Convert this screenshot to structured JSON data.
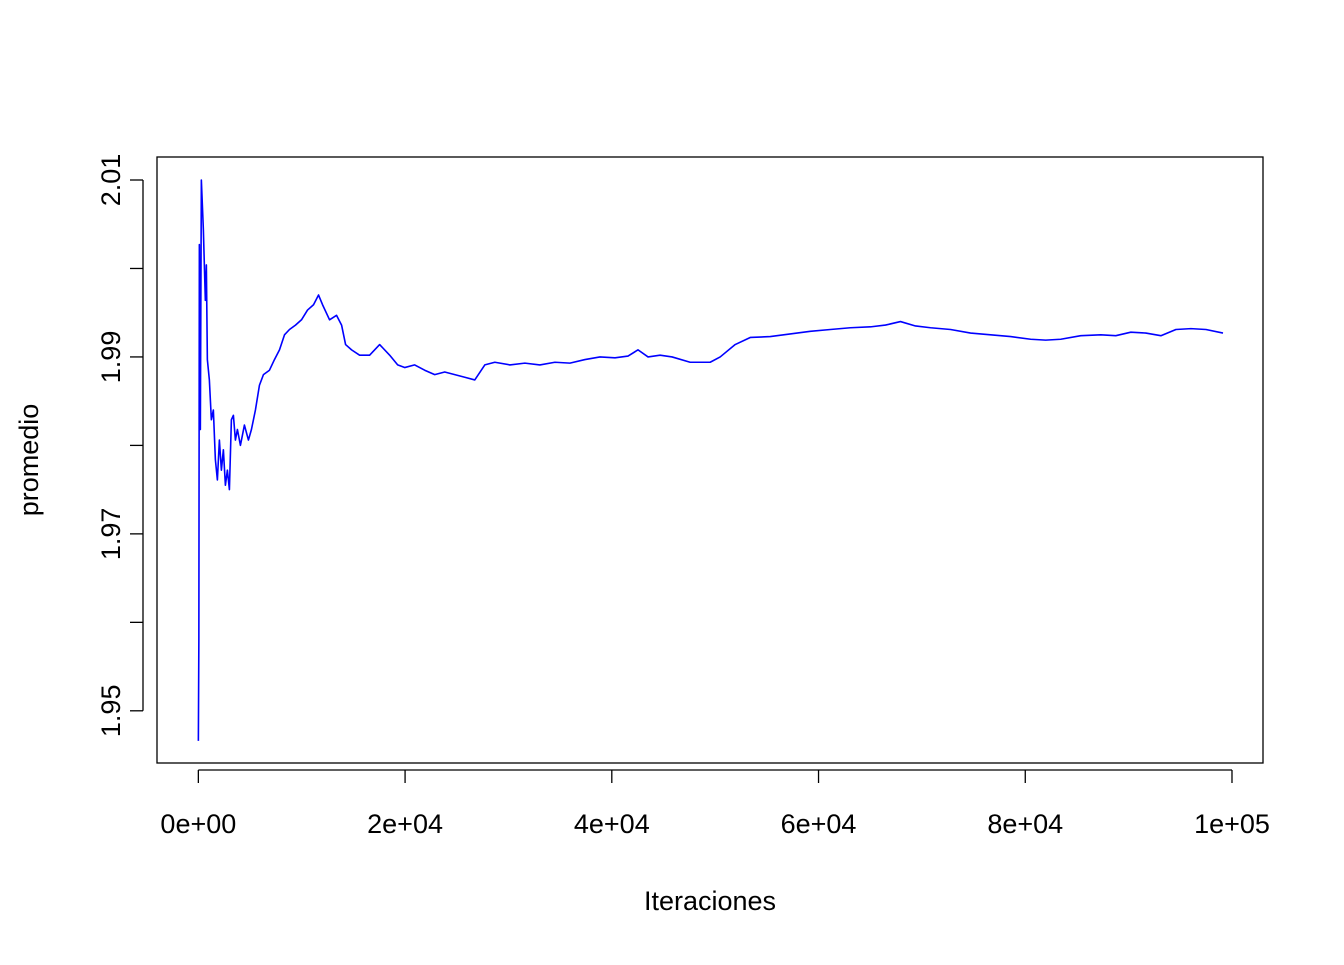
{
  "chart_data": {
    "type": "line",
    "x_label": "Iteraciones",
    "y_label": "promedio",
    "color": "#0000ff",
    "xlim": [
      -4000,
      103000
    ],
    "ylim": [
      1.9441,
      2.0126
    ],
    "xticks": [
      {
        "value": 0,
        "label": "0e+00"
      },
      {
        "value": 20000,
        "label": "2e+04"
      },
      {
        "value": 40000,
        "label": "4e+04"
      },
      {
        "value": 60000,
        "label": "6e+04"
      },
      {
        "value": 80000,
        "label": "8e+04"
      },
      {
        "value": 100000,
        "label": "1e+05"
      }
    ],
    "yticks": [
      1.95,
      1.97,
      1.99,
      2.01
    ],
    "yminorticks": [
      1.96,
      1.98,
      2.0
    ],
    "x": [
      1,
      50,
      97,
      194,
      291,
      485,
      678,
      775,
      872,
      1066,
      1260,
      1453,
      1647,
      1841,
      2035,
      2229,
      2422,
      2616,
      2810,
      3004,
      3197,
      3391,
      3585,
      3779,
      4070,
      4457,
      4845,
      5136,
      5523,
      5911,
      6298,
      6880,
      7364,
      7849,
      8333,
      8818,
      9399,
      9981,
      10562,
      11143,
      11628,
      12016,
      12694,
      13372,
      13857,
      14244,
      14826,
      15601,
      16570,
      17539,
      18508,
      19283,
      19961,
      20930,
      21899,
      22868,
      23837,
      24806,
      25775,
      26744,
      27713,
      28682,
      30136,
      31589,
      33043,
      34496,
      35950,
      37403,
      38857,
      40310,
      41570,
      42539,
      43508,
      44671,
      45834,
      47578,
      49516,
      50485,
      51938,
      53392,
      55330,
      57268,
      59206,
      61144,
      63082,
      65020,
      66473,
      67927,
      69380,
      70834,
      72772,
      74710,
      76648,
      78586,
      80524,
      81977,
      83431,
      85369,
      87307,
      88760,
      90214,
      91667,
      93121,
      94574,
      96028,
      97481,
      99129
    ],
    "values": [
      1.9466,
      1.958,
      2.0027,
      1.9818,
      2.01,
      2.0044,
      1.9964,
      2.0004,
      1.9897,
      1.9874,
      1.9829,
      1.984,
      1.9784,
      1.9761,
      1.9806,
      1.9772,
      1.9795,
      1.9755,
      1.9772,
      1.975,
      1.9829,
      1.9834,
      1.9806,
      1.9818,
      1.98,
      1.9823,
      1.9806,
      1.9818,
      1.984,
      1.9868,
      1.988,
      1.9885,
      1.9897,
      1.9908,
      1.9925,
      1.9931,
      1.9936,
      1.9942,
      1.9953,
      1.9959,
      1.997,
      1.9959,
      1.9942,
      1.9947,
      1.9936,
      1.9914,
      1.9908,
      1.9902,
      1.9902,
      1.9914,
      1.9902,
      1.9891,
      1.9888,
      1.9891,
      1.9885,
      1.988,
      1.9883,
      1.988,
      1.9877,
      1.9874,
      1.9891,
      1.9894,
      1.9891,
      1.9893,
      1.9891,
      1.9894,
      1.9893,
      1.9897,
      1.99,
      1.9899,
      1.9901,
      1.9908,
      1.99,
      1.9902,
      1.99,
      1.9894,
      1.9894,
      1.99,
      1.9914,
      1.9922,
      1.9923,
      1.9926,
      1.9929,
      1.9931,
      1.9933,
      1.9934,
      1.9936,
      1.994,
      1.9935,
      1.9933,
      1.9931,
      1.9927,
      1.9925,
      1.9923,
      1.992,
      1.9919,
      1.992,
      1.9924,
      1.9925,
      1.9924,
      1.9928,
      1.9927,
      1.9924,
      1.9931,
      1.9932,
      1.9931,
      1.9927
    ]
  }
}
